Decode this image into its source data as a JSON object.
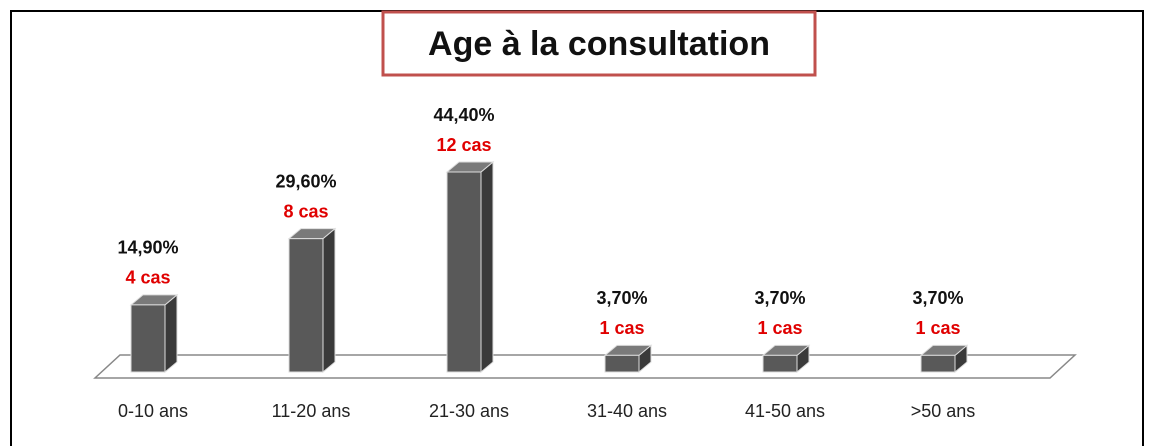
{
  "chart_data": {
    "type": "bar3d",
    "title": "Age à la consultation",
    "categories": [
      "0-10 ans",
      "11-20 ans",
      "21-30 ans",
      "31-40 ans",
      "41-50 ans",
      ">50 ans"
    ],
    "values": [
      14.9,
      29.6,
      44.4,
      3.7,
      3.7,
      3.7
    ],
    "value_labels": [
      "14,90%",
      "29,60%",
      "44,40%",
      "3,70%",
      "3,70%",
      "3,70%"
    ],
    "counts": [
      4,
      8,
      12,
      1,
      1,
      1
    ],
    "count_labels": [
      "4 cas",
      "8 cas",
      "12 cas",
      "1 cas",
      "1 cas",
      "1 cas"
    ],
    "color": "#595959",
    "count_color": "#e00000"
  }
}
